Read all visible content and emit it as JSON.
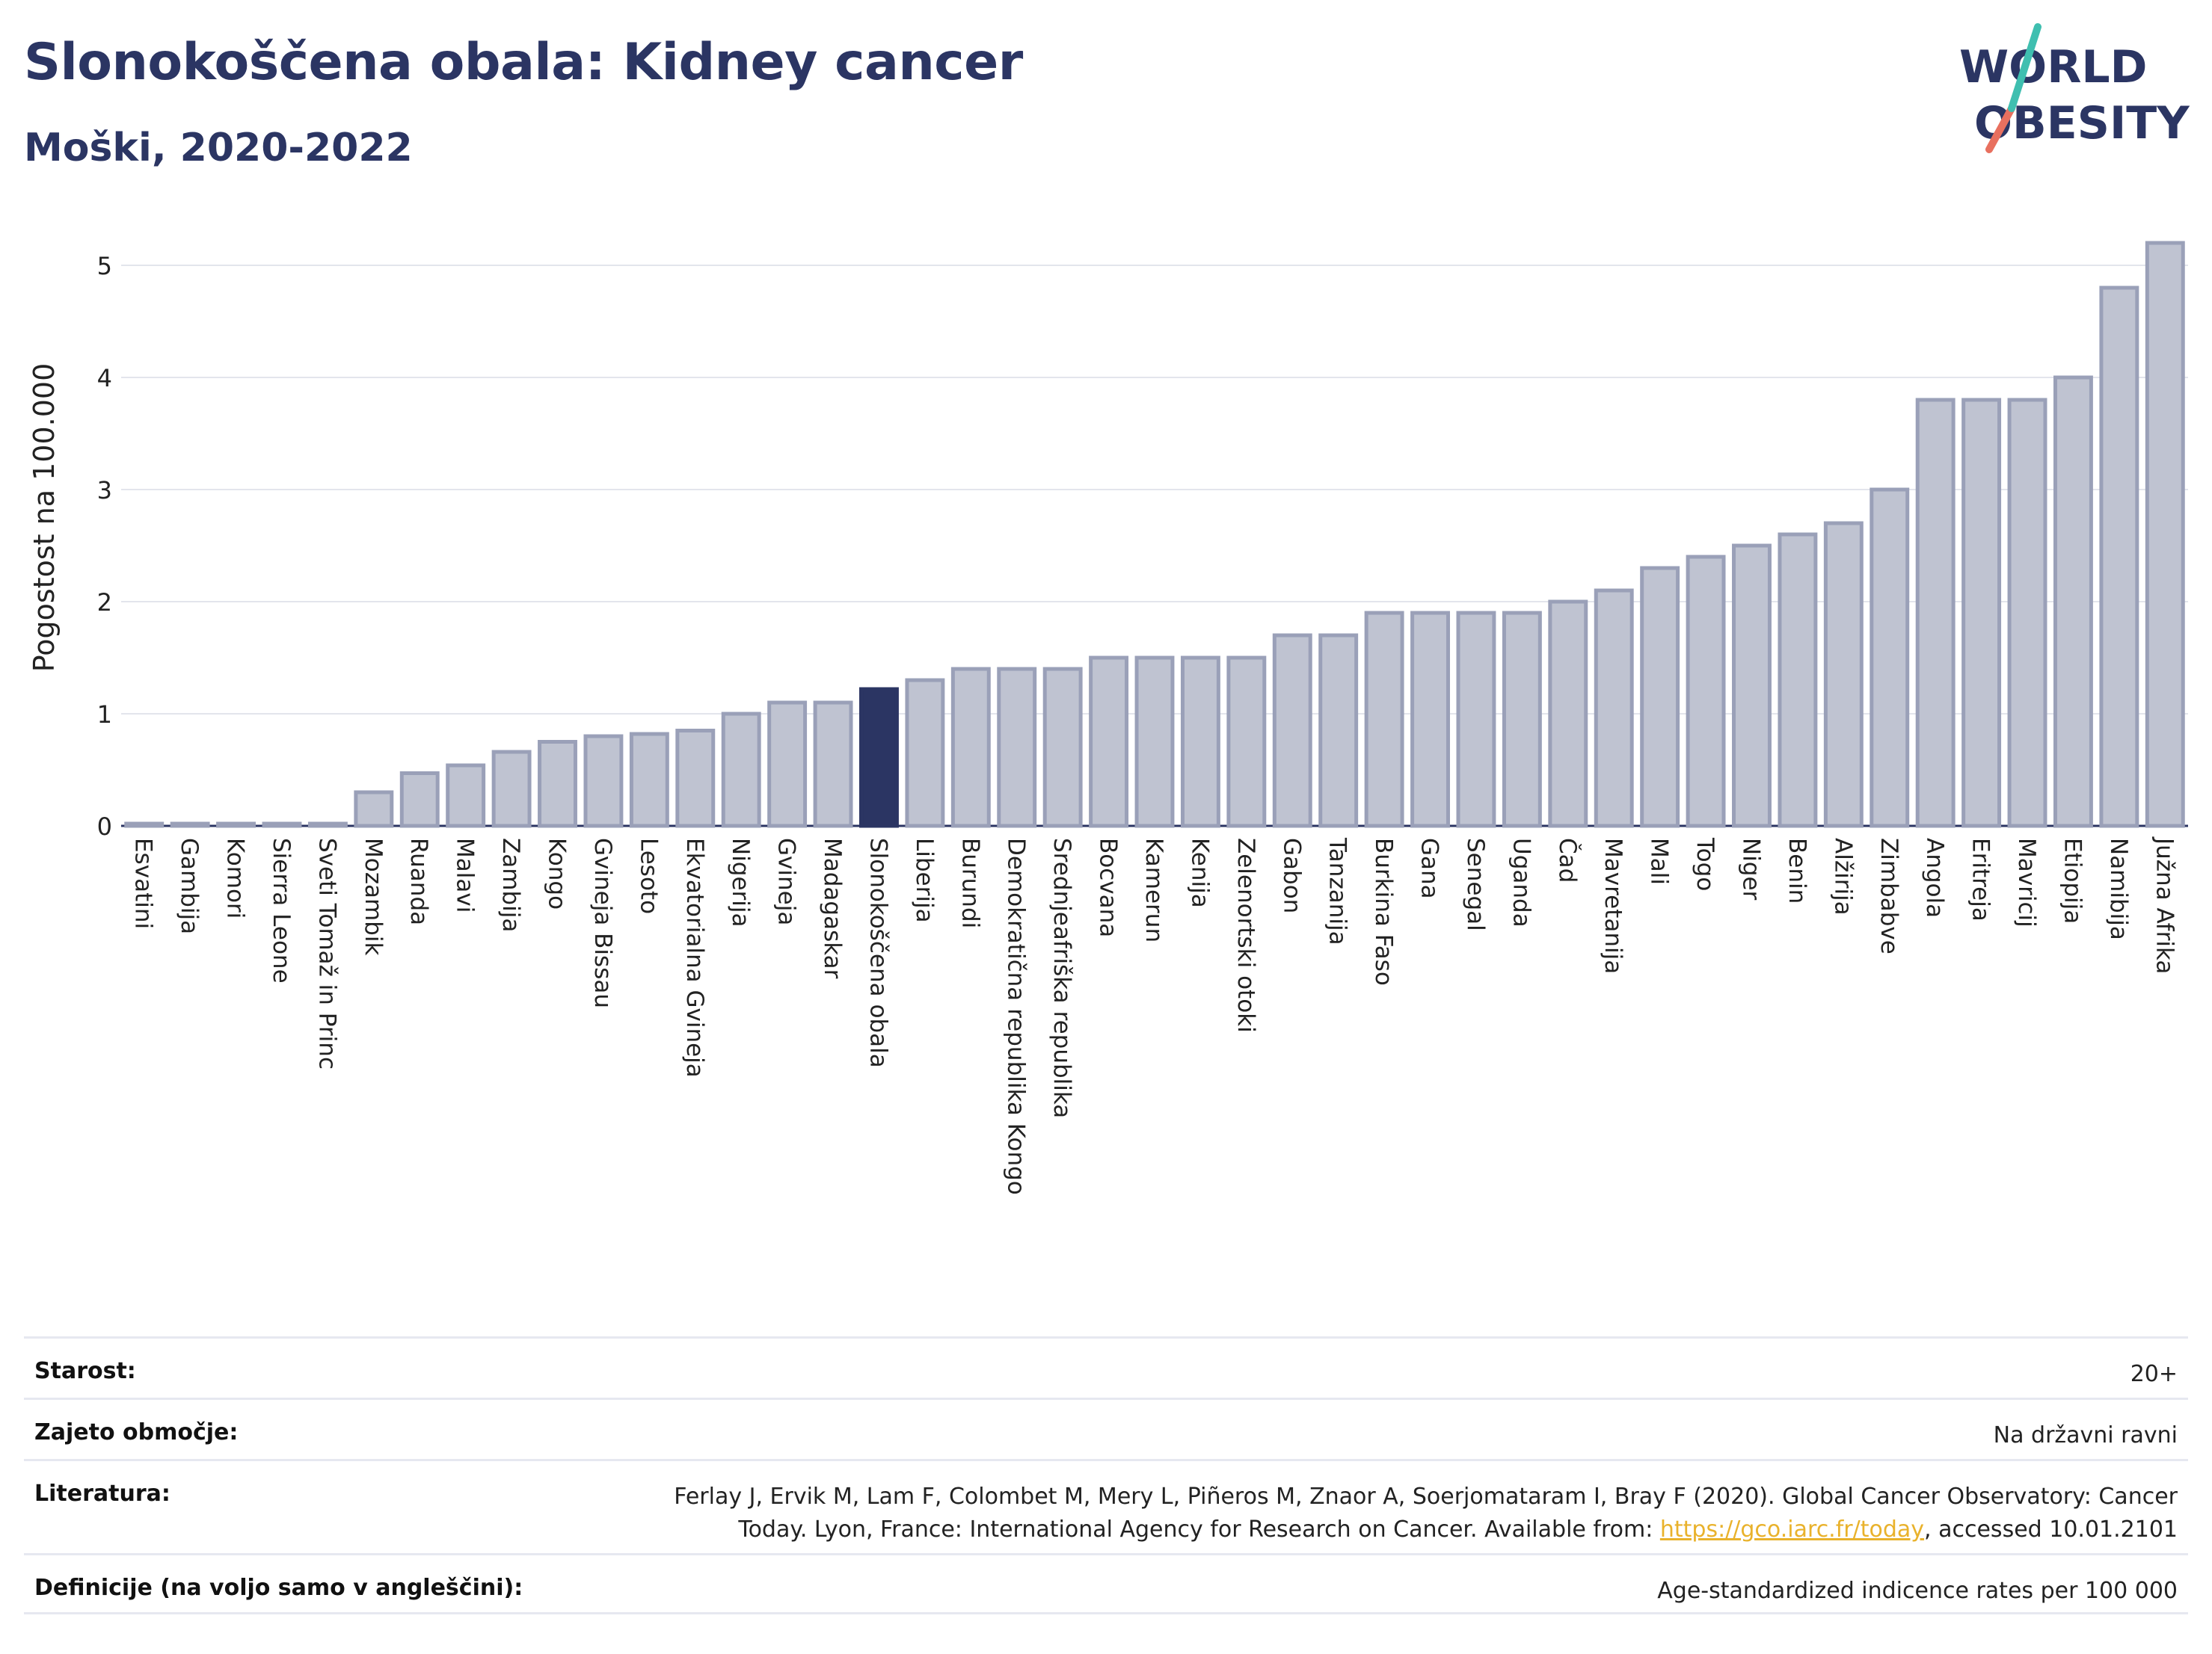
{
  "header": {
    "title": "Slonokoščena obala: Kidney cancer",
    "subtitle": "Moški, 2020-2022"
  },
  "logo": {
    "line1": "WORLD",
    "line2": "OBESITY"
  },
  "colors": {
    "bar": "#bfc3d1",
    "bar_stroke": "#9aa0b8",
    "highlight": "#2b3563",
    "text": "#2b3563",
    "accent_teal": "#3fbfb0",
    "accent_red": "#e8705f"
  },
  "chart_data": {
    "type": "bar",
    "ylabel": "Pogostost na 100.000",
    "xlabel": "",
    "ylim": [
      0,
      5.5
    ],
    "yticks": [
      0,
      1,
      2,
      3,
      4,
      5
    ],
    "grid": true,
    "highlight_category": "Slonokoščena obala",
    "categories": [
      "Esvatini",
      "Gambija",
      "Komori",
      "Sierra Leone",
      "Sveti Tomaž in Princ",
      "Mozambik",
      "Ruanda",
      "Malavi",
      "Zambija",
      "Kongo",
      "Gvineja Bissau",
      "Lesoto",
      "Ekvatorialna Gvineja",
      "Nigerija",
      "Gvineja",
      "Madagaskar",
      "Slonokoščena obala",
      "Liberija",
      "Burundi",
      "Demokratična republika Kongo",
      "Srednjeafriška republika",
      "Bocvana",
      "Kamerun",
      "Kenija",
      "Zelenortski otoki",
      "Gabon",
      "Tanzanija",
      "Burkina Faso",
      "Gana",
      "Senegal",
      "Uganda",
      "Čad",
      "Mavretanija",
      "Mali",
      "Togo",
      "Niger",
      "Benin",
      "Alžirija",
      "Zimbabve",
      "Angola",
      "Eritreja",
      "Mavricij",
      "Etiopija",
      "Namibija",
      "Južna Afrika"
    ],
    "values": [
      0.02,
      0.02,
      0.02,
      0.02,
      0.02,
      0.3,
      0.47,
      0.54,
      0.66,
      0.75,
      0.8,
      0.82,
      0.85,
      1.0,
      1.1,
      1.1,
      1.22,
      1.3,
      1.4,
      1.4,
      1.4,
      1.5,
      1.5,
      1.5,
      1.5,
      1.7,
      1.7,
      1.9,
      1.9,
      1.9,
      1.9,
      2.0,
      2.1,
      2.3,
      2.4,
      2.5,
      2.6,
      2.7,
      3.0,
      3.8,
      3.8,
      3.8,
      4.0,
      4.8,
      5.2
    ]
  },
  "info": {
    "rows": [
      {
        "label": "Starost:",
        "value": "20+"
      },
      {
        "label": "Zajeto območje:",
        "value": "Na državni ravni"
      },
      {
        "label": "Literatura:",
        "value_line1": "Ferlay J, Ervik M, Lam F, Colombet M, Mery L, Piñeros M, Znaor A, Soerjomataram I, Bray F (2020). Global Cancer Observatory: Cancer",
        "value_line2_pre": "Today. Lyon, France: International Agency for Research on Cancer. Available from: ",
        "link": "https://gco.iarc.fr/today",
        "value_line2_post": ", accessed 10.01.2101"
      },
      {
        "label": "Definicije (na voljo samo v angleščini):",
        "value": "Age-standardized indicence rates per 100 000"
      }
    ]
  }
}
